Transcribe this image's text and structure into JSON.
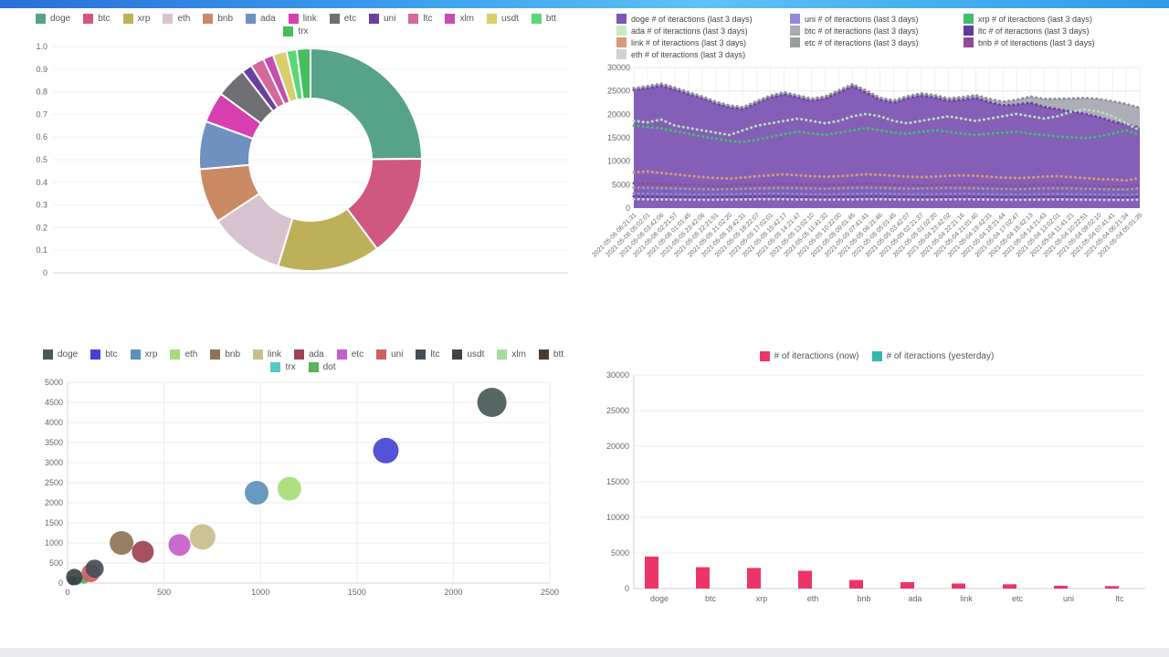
{
  "page": {
    "top_bar_colors": [
      "#2a6fd8",
      "#3b9fed",
      "#5ec1f7",
      "#2f9be8"
    ],
    "background": "#ffffff",
    "bottom_strip_color": "#e9ebee"
  },
  "chart_data": [
    {
      "id": "coin-share-doughnut",
      "type": "pie",
      "variant": "doughnut",
      "y_ticks": [
        "1.0",
        "0.9",
        "0.8",
        "0.7",
        "0.6",
        "0.5",
        "0.4",
        "0.3",
        "0.2",
        "0.1",
        "0"
      ],
      "legend": [
        {
          "key": "doge",
          "label": "doge",
          "color": "#57a389"
        },
        {
          "key": "btc",
          "label": "btc",
          "color": "#d0577f"
        },
        {
          "key": "xrp",
          "label": "xrp",
          "color": "#beb05a"
        },
        {
          "key": "eth",
          "label": "eth",
          "color": "#d8c3d0"
        },
        {
          "key": "bnb",
          "label": "bnb",
          "color": "#ca8a64"
        },
        {
          "key": "ada",
          "label": "ada",
          "color": "#7090c0"
        },
        {
          "key": "link",
          "label": "link",
          "color": "#d83fae"
        },
        {
          "key": "etc",
          "label": "etc",
          "color": "#6f6f73"
        },
        {
          "key": "uni",
          "label": "uni",
          "color": "#6b3fa0"
        },
        {
          "key": "ltc",
          "label": "ltc",
          "color": "#d4679c"
        },
        {
          "key": "xlm",
          "label": "xlm",
          "color": "#c44fb0"
        },
        {
          "key": "usdt",
          "label": "usdt",
          "color": "#d8cf6a"
        },
        {
          "key": "btt",
          "label": "btt",
          "color": "#5ad878"
        },
        {
          "key": "trx",
          "label": "trx",
          "color": "#46bd60"
        }
      ],
      "values": [
        25,
        15,
        15,
        11,
        8,
        7,
        4.5,
        4.5,
        1.5,
        2,
        1.5,
        2,
        1.5,
        2
      ]
    },
    {
      "id": "interactions-last-3-days",
      "type": "area",
      "ymax": 30000,
      "y_ticks": [
        0,
        5000,
        10000,
        15000,
        20000,
        25000,
        30000
      ],
      "x_labels": [
        "2021-05-06 06:21:31",
        "2021-05-06 05:02:01",
        "2021-05-06 03:42:06",
        "2021-05-06 02:21:57",
        "2021-05-06 01:01:45",
        "2021-05-05 23:42:06",
        "2021-05-05 22:21:51",
        "2021-05-05 21:02:20",
        "2021-05-05 19:42:31",
        "2021-05-05 18:22:07",
        "2021-05-05 17:02:01",
        "2021-05-05 15:42:17",
        "2021-05-05 14:21:47",
        "2021-05-05 13:02:10",
        "2021-05-05 11:41:32",
        "2021-05-05 10:22:00",
        "2021-05-05 09:01:45",
        "2021-05-05 07:41:41",
        "2021-05-05 06:21:46",
        "2021-05-05 05:01:45",
        "2021-05-05 03:42:07",
        "2021-05-05 02:21:37",
        "2021-05-05 01:02:20",
        "2021-05-04 23:42:02",
        "2021-05-04 22:21:16",
        "2021-05-04 21:01:40",
        "2021-05-04 19:42:31",
        "2021-05-04 18:21:44",
        "2021-05-04 17:02:47",
        "2021-05-04 15:42:13",
        "2021-05-04 14:21:43",
        "2021-05-04 13:02:01",
        "2021-05-04 11:41:21",
        "2021-05-04 10:22:51",
        "2021-05-04 09:02:10",
        "2021-05-04 07:41:41",
        "2021-05-04 06:21:34",
        "2021-05-04 05:01:35"
      ],
      "legend": [
        {
          "key": "doge",
          "label": "doge  # of iteractions (last 3 days)",
          "color": "#7d55b3"
        },
        {
          "key": "uni",
          "label": "uni  # of iteractions (last 3 days)",
          "color": "#9289d8"
        },
        {
          "key": "xrp",
          "label": "xrp  # of iteractions (last 3 days)",
          "color": "#41bd70"
        },
        {
          "key": "ada",
          "label": "ada  # of iteractions (last 3 days)",
          "color": "#c8e8c6"
        },
        {
          "key": "btc",
          "label": "btc  # of iteractions (last 3 days)",
          "color": "#a9aab3"
        },
        {
          "key": "ltc",
          "label": "ltc  # of iteractions (last 3 days)",
          "color": "#5a3d9c"
        },
        {
          "key": "link",
          "label": "link  # of iteractions (last 3 days)",
          "color": "#d89a78"
        },
        {
          "key": "etc",
          "label": "etc  # of iteractions (last 3 days)",
          "color": "#98a09e"
        },
        {
          "key": "bnb",
          "label": "bnb  # of iteractions (last 3 days)",
          "color": "#8f4c94"
        },
        {
          "key": "eth",
          "label": "eth  # of iteractions (last 3 days)",
          "color": "#ced1d6"
        }
      ],
      "series": [
        {
          "name": "doge",
          "render": "area",
          "color": "#7d55b3",
          "edge": "#6a3fa6",
          "values": [
            25200,
            25600,
            26100,
            25300,
            24300,
            23400,
            22300,
            21500,
            21100,
            22400,
            23600,
            24300,
            23600,
            22900,
            23400,
            24700,
            26000,
            24600,
            23100,
            22500,
            23400,
            24000,
            23600,
            22900,
            23100,
            23500,
            22600,
            21900,
            22100,
            22500,
            21600,
            21100,
            20600,
            20100,
            19400,
            18500,
            17800,
            17200
          ]
        },
        {
          "name": "btc",
          "render": "area-stack",
          "color": "#a9aab3",
          "edge": "#8e8f99",
          "values": [
            400,
            420,
            450,
            430,
            420,
            410,
            400,
            420,
            440,
            430,
            420,
            430,
            440,
            450,
            440,
            430,
            450,
            470,
            460,
            450,
            460,
            480,
            500,
            520,
            560,
            620,
            700,
            820,
            1000,
            1300,
            1700,
            2200,
            2800,
            3400,
            3900,
            4300,
            4400,
            4200
          ]
        },
        {
          "name": "ada",
          "render": "dots",
          "color": "#b5e3b5",
          "values": [
            18600,
            18300,
            18900,
            17600,
            17100,
            16600,
            16100,
            15600,
            16600,
            17600,
            18100,
            18600,
            19100,
            18600,
            18100,
            18600,
            19600,
            20100,
            19600,
            18600,
            18100,
            18600,
            19100,
            19600,
            19100,
            18600,
            19100,
            19600,
            20100,
            19600,
            19100,
            19600,
            20600,
            21100,
            20600,
            19600,
            18100,
            16600
          ]
        },
        {
          "name": "xrp",
          "render": "dots",
          "color": "#41bd70",
          "values": [
            17600,
            17300,
            17000,
            16400,
            15900,
            15300,
            14800,
            14300,
            14100,
            14600,
            15200,
            15800,
            16300,
            15900,
            15600,
            16100,
            16600,
            17100,
            16600,
            16100,
            15900,
            16300,
            16600,
            16300,
            15900,
            15600,
            15900,
            16100,
            16300,
            15900,
            15600,
            15300,
            15100,
            14900,
            15300,
            15900,
            16600,
            15600
          ]
        },
        {
          "name": "link",
          "render": "dots",
          "color": "#d89a78",
          "values": [
            7600,
            7800,
            7500,
            7200,
            6900,
            6600,
            6400,
            6300,
            6500,
            6800,
            7000,
            7200,
            7000,
            6800,
            6700,
            6800,
            7000,
            7200,
            7100,
            6900,
            6700,
            6600,
            6700,
            6900,
            7000,
            6900,
            6700,
            6500,
            6400,
            6500,
            6700,
            6800,
            6600,
            6400,
            6200,
            6100,
            5900,
            6400
          ]
        },
        {
          "name": "bnb",
          "render": "dots",
          "color": "#8f4c94",
          "values": [
            5300,
            5200,
            5100,
            5000,
            4900,
            4800,
            4700,
            4800,
            4900,
            5000,
            5100,
            5200,
            5100,
            5000,
            4900,
            5000,
            5100,
            5200,
            5100,
            5000,
            4900,
            4800,
            4900,
            5000,
            5100,
            5000,
            4900,
            4800,
            4700,
            4800,
            4900,
            5000,
            4900,
            4800,
            4700,
            4600,
            4500,
            4900
          ]
        },
        {
          "name": "etc",
          "render": "dots",
          "color": "#98a09e",
          "values": [
            4400,
            4300,
            4250,
            4200,
            4100,
            4050,
            4000,
            4050,
            4100,
            4200,
            4250,
            4300,
            4250,
            4200,
            4150,
            4200,
            4300,
            4350,
            4300,
            4200,
            4150,
            4200,
            4250,
            4300,
            4250,
            4200,
            4150,
            4100,
            4050,
            4100,
            4200,
            4250,
            4200,
            4100,
            4050,
            4000,
            3950,
            4200
          ]
        },
        {
          "name": "uni",
          "render": "dots",
          "color": "#9289d8",
          "values": [
            3100,
            3050,
            3000,
            2950,
            2900,
            2850,
            2900,
            2950,
            3000,
            3050,
            3100,
            3050,
            3000,
            2950,
            2900,
            2950,
            3000,
            3100,
            3050,
            3000,
            2950,
            2900,
            2950,
            3000,
            3050,
            3000,
            2950,
            2900,
            2850,
            2900,
            2950,
            3000,
            2950,
            2900,
            2850,
            2800,
            2750,
            2950
          ]
        },
        {
          "name": "ltc",
          "render": "dots",
          "color": "#5a3d9c",
          "values": [
            2500,
            2450,
            2400,
            2380,
            2350,
            2330,
            2350,
            2380,
            2400,
            2450,
            2500,
            2450,
            2400,
            2380,
            2350,
            2380,
            2400,
            2450,
            2430,
            2400,
            2380,
            2350,
            2380,
            2400,
            2430,
            2400,
            2380,
            2350,
            2330,
            2350,
            2380,
            2400,
            2380,
            2350,
            2330,
            2300,
            2280,
            2380
          ]
        },
        {
          "name": "eth",
          "render": "dots",
          "color": "#ced1d6",
          "values": [
            1900,
            1870,
            1850,
            1830,
            1800,
            1780,
            1800,
            1830,
            1850,
            1880,
            1900,
            1880,
            1850,
            1830,
            1800,
            1830,
            1850,
            1900,
            1880,
            1850,
            1830,
            1800,
            1830,
            1850,
            1880,
            1850,
            1830,
            1800,
            1780,
            1800,
            1830,
            1850,
            1830,
            1800,
            1780,
            1760,
            1740,
            1820
          ]
        }
      ]
    },
    {
      "id": "coin-bubble-scatter",
      "type": "scatter",
      "xmax": 2500,
      "ymax": 5000,
      "x_ticks": [
        0,
        500,
        1000,
        1500,
        2000,
        2500
      ],
      "y_ticks": [
        0,
        500,
        1000,
        1500,
        2000,
        2500,
        3000,
        3500,
        4000,
        4500,
        5000
      ],
      "legend": [
        {
          "key": "doge",
          "label": "doge",
          "color": "#485a56"
        },
        {
          "key": "btc",
          "label": "btc",
          "color": "#4444d4"
        },
        {
          "key": "xrp",
          "label": "xrp",
          "color": "#5a93b8"
        },
        {
          "key": "eth",
          "label": "eth",
          "color": "#a8db78"
        },
        {
          "key": "bnb",
          "label": "bnb",
          "color": "#8f7356"
        },
        {
          "key": "link",
          "label": "link",
          "color": "#c9bd8c"
        },
        {
          "key": "ada",
          "label": "ada",
          "color": "#9e4350"
        },
        {
          "key": "etc",
          "label": "etc",
          "color": "#c45ec9"
        },
        {
          "key": "uni",
          "label": "uni",
          "color": "#d05f63"
        },
        {
          "key": "ltc",
          "label": "ltc",
          "color": "#474f56"
        },
        {
          "key": "usdt",
          "label": "usdt",
          "color": "#3e4346"
        },
        {
          "key": "xlm",
          "label": "xlm",
          "color": "#a5db9b"
        },
        {
          "key": "btt",
          "label": "btt",
          "color": "#4f382f"
        },
        {
          "key": "trx",
          "label": "trx",
          "color": "#57c8c4"
        },
        {
          "key": "dot",
          "label": "dot",
          "color": "#58b35c"
        }
      ],
      "points": [
        {
          "label": "xlm",
          "x": 70,
          "y": 120,
          "r": 6
        },
        {
          "label": "trx",
          "x": 50,
          "y": 70,
          "r": 5
        },
        {
          "label": "dot",
          "x": 85,
          "y": 95,
          "r": 5
        },
        {
          "label": "btt",
          "x": 25,
          "y": 60,
          "r": 5
        },
        {
          "label": "usdt",
          "x": 35,
          "y": 150,
          "r": 9
        },
        {
          "label": "uni",
          "x": 120,
          "y": 250,
          "r": 10
        },
        {
          "label": "ltc",
          "x": 140,
          "y": 360,
          "r": 10
        },
        {
          "label": "bnb",
          "x": 280,
          "y": 1000,
          "r": 13
        },
        {
          "label": "ada",
          "x": 390,
          "y": 780,
          "r": 12
        },
        {
          "label": "etc",
          "x": 580,
          "y": 950,
          "r": 12
        },
        {
          "label": "link",
          "x": 700,
          "y": 1150,
          "r": 14
        },
        {
          "label": "xrp",
          "x": 980,
          "y": 2250,
          "r": 13
        },
        {
          "label": "eth",
          "x": 1150,
          "y": 2350,
          "r": 13
        },
        {
          "label": "btc",
          "x": 1650,
          "y": 3300,
          "r": 14
        },
        {
          "label": "doge",
          "x": 2200,
          "y": 4500,
          "r": 16
        }
      ]
    },
    {
      "id": "interactions-now-vs-yesterday",
      "type": "bar",
      "ymax": 30000,
      "y_ticks": [
        0,
        5000,
        10000,
        15000,
        20000,
        25000,
        30000
      ],
      "categories": [
        "doge",
        "btc",
        "xrp",
        "eth",
        "bnb",
        "ada",
        "link",
        "etc",
        "uni",
        "ltc"
      ],
      "legend": [
        {
          "key": "now",
          "label": "# of iteractions (now)",
          "color": "#ec3566"
        },
        {
          "key": "yesterday",
          "label": "# of iteractions (yesterday)",
          "color": "#36b7ae"
        }
      ],
      "series": [
        {
          "name": "# of iteractions (now)",
          "color": "#ec3566",
          "values": [
            4500,
            3000,
            2900,
            2500,
            1200,
            900,
            700,
            600,
            400,
            350
          ]
        },
        {
          "name": "# of iteractions (yesterday)",
          "color": "#36b7ae",
          "values": [
            0,
            0,
            0,
            0,
            0,
            0,
            0,
            0,
            0,
            0
          ]
        }
      ]
    }
  ]
}
